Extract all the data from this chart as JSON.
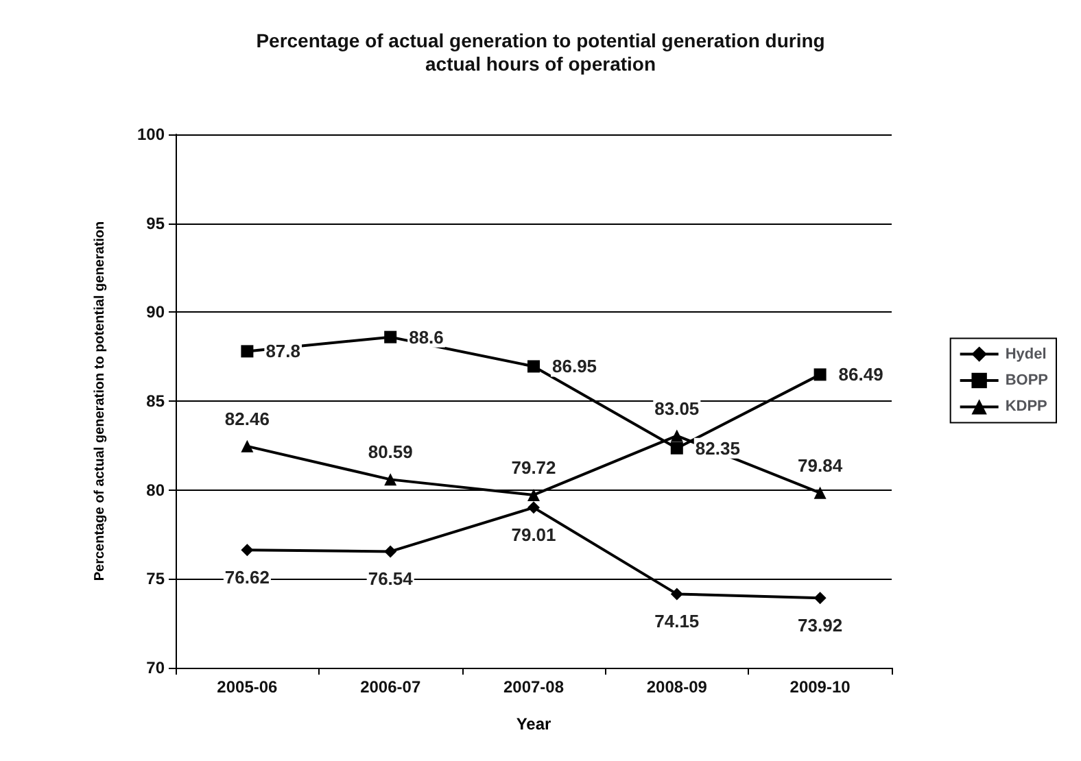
{
  "chart_data": {
    "type": "line",
    "title": "Percentage of actual generation to potential generation during\nactual hours of operation",
    "xlabel": "Year",
    "ylabel": "Percentage of actual generation to potential generation",
    "categories": [
      "2005-06",
      "2006-07",
      "2007-08",
      "2008-09",
      "2009-10"
    ],
    "series": [
      {
        "name": "Hydel",
        "color": "#000000",
        "marker": "diamond",
        "values": [
          76.62,
          76.54,
          79.01,
          74.15,
          73.92
        ]
      },
      {
        "name": "BOPP",
        "color": "#000000",
        "marker": "square",
        "values": [
          87.8,
          88.6,
          86.95,
          82.35,
          86.49
        ]
      },
      {
        "name": "KDPP",
        "color": "#000000",
        "marker": "triangle",
        "values": [
          82.46,
          80.59,
          79.72,
          83.05,
          79.84
        ]
      }
    ],
    "ylim": [
      70,
      100
    ],
    "yticks": [
      70,
      75,
      80,
      85,
      90,
      95,
      100
    ],
    "grid": "y",
    "legend": "right",
    "data_labels": true
  }
}
